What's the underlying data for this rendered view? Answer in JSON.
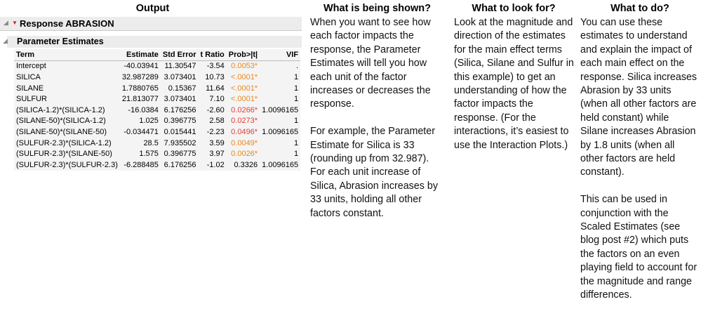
{
  "output": {
    "heading": "Output",
    "response": "Response ABRASION",
    "section": "Parameter Estimates",
    "columns": [
      "Term",
      "Estimate",
      "Std Error",
      "t Ratio",
      "Prob>|t|",
      "VIF"
    ],
    "rows": [
      {
        "term": "Intercept",
        "estimate": "-40.03941",
        "std_error": "11.30547",
        "t_ratio": "-3.54",
        "prob": "0.0053*",
        "prob_color": "#e8891c",
        "vif": "."
      },
      {
        "term": "SILICA",
        "estimate": "32.987289",
        "std_error": "3.073401",
        "t_ratio": "10.73",
        "prob": "<.0001*",
        "prob_color": "#e8891c",
        "vif": "1"
      },
      {
        "term": "SILANE",
        "estimate": "1.7880765",
        "std_error": "0.15367",
        "t_ratio": "11.64",
        "prob": "<.0001*",
        "prob_color": "#e8891c",
        "vif": "1"
      },
      {
        "term": "SULFUR",
        "estimate": "21.813077",
        "std_error": "3.073401",
        "t_ratio": "7.10",
        "prob": "<.0001*",
        "prob_color": "#e8891c",
        "vif": "1"
      },
      {
        "term": "(SILICA-1.2)*(SILICA-1.2)",
        "estimate": "-16.0384",
        "std_error": "6.176256",
        "t_ratio": "-2.60",
        "prob": "0.0266*",
        "prob_color": "#e0403a",
        "vif": "1.0096165"
      },
      {
        "term": "(SILANE-50)*(SILICA-1.2)",
        "estimate": "1.025",
        "std_error": "0.396775",
        "t_ratio": "2.58",
        "prob": "0.0273*",
        "prob_color": "#e0403a",
        "vif": "1"
      },
      {
        "term": "(SILANE-50)*(SILANE-50)",
        "estimate": "-0.034471",
        "std_error": "0.015441",
        "t_ratio": "-2.23",
        "prob": "0.0496*",
        "prob_color": "#e0403a",
        "vif": "1.0096165"
      },
      {
        "term": "(SULFUR-2.3)*(SILICA-1.2)",
        "estimate": "28.5",
        "std_error": "7.935502",
        "t_ratio": "3.59",
        "prob": "0.0049*",
        "prob_color": "#e8891c",
        "vif": "1"
      },
      {
        "term": "(SULFUR-2.3)*(SILANE-50)",
        "estimate": "1.575",
        "std_error": "0.396775",
        "t_ratio": "3.97",
        "prob": "0.0026*",
        "prob_color": "#e8891c",
        "vif": "1"
      },
      {
        "term": "(SULFUR-2.3)*(SULFUR-2.3)",
        "estimate": "-6.288485",
        "std_error": "6.176256",
        "t_ratio": "-1.02",
        "prob": "0.3326",
        "prob_color": "#000000",
        "vif": "1.0096165"
      }
    ]
  },
  "shown": {
    "heading": "What is being shown?",
    "paragraphs": [
      "When you want to see how each factor impacts the response, the Parameter Estimates will tell you how each unit of the factor increases or decreases the response.",
      "For example, the Parameter Estimate for Silica is 33 (rounding up from 32.987). For each unit increase of Silica, Abrasion increases by 33 units, holding all other factors constant."
    ]
  },
  "look": {
    "heading": "What to look for?",
    "paragraphs": [
      "Look at the magnitude and direction of the estimates for the main effect terms (Silica, Silane and Sulfur in this example) to get an understanding of how the factor impacts the response. (For the interactions, it’s easiest to use the Interaction Plots.)"
    ]
  },
  "todo": {
    "heading": "What to do?",
    "paragraphs": [
      "You can use these estimates to understand and explain the impact of each main effect on the response. Silica increases Abrasion by 33 units (when all other factors are held constant) while Silane increases Abrasion by 1.8 units (when all other factors are held constant).",
      "This can be used in conjunction with the Scaled Estimates (see blog post #2) which puts the factors on an even playing field to account for the magnitude and range differences."
    ]
  }
}
